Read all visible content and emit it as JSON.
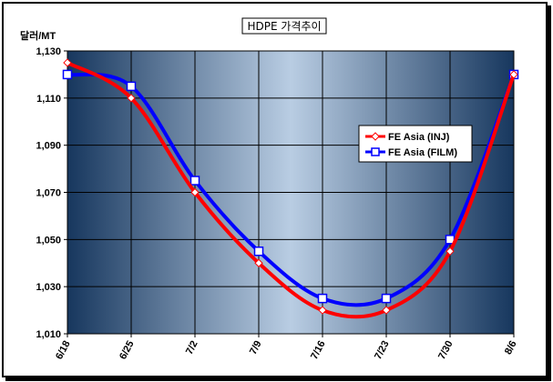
{
  "chart_data": {
    "type": "line",
    "title": "HDPE 가격추이",
    "ylabel": "달러/MT",
    "xlabel": "",
    "categories": [
      "6/18",
      "6/25",
      "7/2",
      "7/9",
      "7/16",
      "7/23",
      "7/30",
      "8/6"
    ],
    "ylim": [
      1010,
      1130
    ],
    "yticks": [
      "1,010",
      "1,030",
      "1,050",
      "1,070",
      "1,090",
      "1,110",
      "1,130"
    ],
    "grid": true,
    "legend_position": "right",
    "series": [
      {
        "name": "FE Asia (INJ)",
        "values": [
          1125,
          1110,
          1070,
          1040,
          1020,
          1020,
          1045,
          1120
        ],
        "color": "#ff0000",
        "marker": "diamond"
      },
      {
        "name": "FE Asia (FILM)",
        "values": [
          1120,
          1115,
          1075,
          1045,
          1025,
          1025,
          1050,
          1120
        ],
        "color": "#0000ff",
        "marker": "square"
      }
    ]
  }
}
